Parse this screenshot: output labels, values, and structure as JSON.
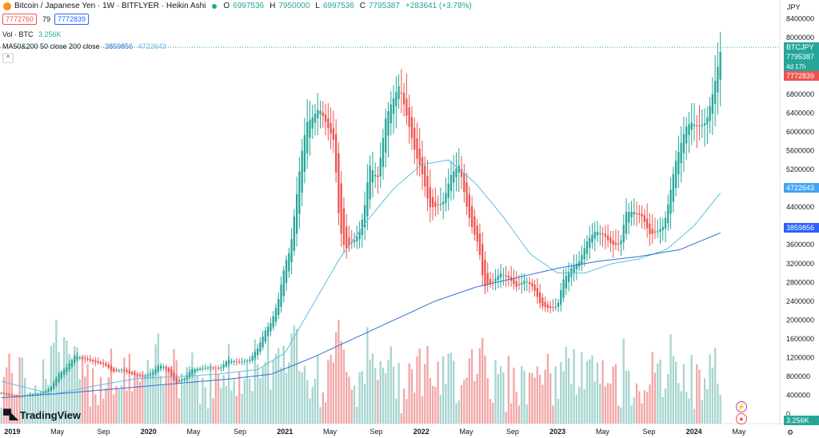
{
  "header": {
    "title": "Bitcoin / Japanese Yen · 1W · BITFLYER · Heikin Ashi",
    "o_label": "O",
    "o_value": "6997536",
    "h_label": "H",
    "h_value": "7950000",
    "l_label": "L",
    "l_value": "6997536",
    "c_label": "C",
    "c_value": "7795387",
    "change": "+283641 (+3.78%)",
    "sell_price": "7772760",
    "spread": "79",
    "buy_price": "7772839",
    "volume_label": "Vol · BTC",
    "volume_value": "3.256K",
    "ma_label": "MA50&200 50 close 200 close",
    "ma50_value": "3859856",
    "ma200_value": "4722643"
  },
  "currency": "JPY",
  "badges": {
    "symbol": "BTCJPY",
    "price": "7795387",
    "countdown": "4d 17h",
    "bid": "7772839",
    "ma_light": "4722643",
    "ma_dark": "3859856",
    "volume": "3.256K"
  },
  "brand": "TradingView",
  "colors": {
    "up": "#26a69a",
    "down": "#ef5350",
    "ma_light": "#5fbfe0",
    "ma_dark": "#2f6fd6",
    "vol_up": "#a6d5cf",
    "vol_down": "#f2a6a6",
    "badge_blue_light": "#42a5f5",
    "badge_blue_dark": "#2962ff"
  },
  "chart_data": {
    "type": "candlestick",
    "style": "Heikin Ashi",
    "interval": "1W",
    "ylim": [
      -200000,
      8800000
    ],
    "y_ticks": [
      "8400000",
      "8000000",
      "7600000",
      "7200000",
      "6800000",
      "6400000",
      "6000000",
      "5600000",
      "5200000",
      "4800000",
      "4400000",
      "4000000",
      "3600000",
      "3200000",
      "2800000",
      "2400000",
      "2000000",
      "1600000",
      "1200000",
      "800000",
      "400000",
      "0"
    ],
    "x_ticks": [
      "2019",
      "May",
      "Sep",
      "2020",
      "May",
      "Sep",
      "2021",
      "May",
      "Sep",
      "2022",
      "May",
      "Sep",
      "2023",
      "May",
      "Sep",
      "2024",
      "May"
    ],
    "x_tick_bold": [
      "2019",
      "2020",
      "2021",
      "2022",
      "2023",
      "2024"
    ],
    "x_range": [
      2018.91,
      2024.63
    ],
    "close_series": [
      [
        2018.92,
        450000
      ],
      [
        2018.98,
        400000
      ],
      [
        2019.04,
        380000
      ],
      [
        2019.1,
        400000
      ],
      [
        2019.16,
        430000
      ],
      [
        2019.22,
        450000
      ],
      [
        2019.28,
        560000
      ],
      [
        2019.34,
        850000
      ],
      [
        2019.4,
        1000000
      ],
      [
        2019.46,
        1250000
      ],
      [
        2019.5,
        1200000
      ],
      [
        2019.56,
        1150000
      ],
      [
        2019.62,
        1100000
      ],
      [
        2019.68,
        1050000
      ],
      [
        2019.74,
        900000
      ],
      [
        2019.8,
        950000
      ],
      [
        2019.88,
        850000
      ],
      [
        2019.95,
        800000
      ],
      [
        2020.02,
        850000
      ],
      [
        2020.08,
        1050000
      ],
      [
        2020.14,
        950000
      ],
      [
        2020.2,
        650000
      ],
      [
        2020.26,
        750000
      ],
      [
        2020.32,
        950000
      ],
      [
        2020.4,
        980000
      ],
      [
        2020.46,
        1000000
      ],
      [
        2020.52,
        960000
      ],
      [
        2020.58,
        1150000
      ],
      [
        2020.66,
        1100000
      ],
      [
        2020.74,
        1150000
      ],
      [
        2020.8,
        1400000
      ],
      [
        2020.86,
        1800000
      ],
      [
        2020.9,
        1950000
      ],
      [
        2020.95,
        2400000
      ],
      [
        2021.0,
        3200000
      ],
      [
        2021.04,
        3500000
      ],
      [
        2021.08,
        4500000
      ],
      [
        2021.12,
        5500000
      ],
      [
        2021.16,
        6200000
      ],
      [
        2021.2,
        6300000
      ],
      [
        2021.25,
        6500000
      ],
      [
        2021.3,
        6200000
      ],
      [
        2021.36,
        5800000
      ],
      [
        2021.4,
        4000000
      ],
      [
        2021.44,
        3500000
      ],
      [
        2021.48,
        3600000
      ],
      [
        2021.54,
        3800000
      ],
      [
        2021.58,
        4300000
      ],
      [
        2021.62,
        5300000
      ],
      [
        2021.68,
        5000000
      ],
      [
        2021.74,
        6300000
      ],
      [
        2021.78,
        6600000
      ],
      [
        2021.84,
        7000000
      ],
      [
        2021.88,
        6500000
      ],
      [
        2021.92,
        6000000
      ],
      [
        2021.96,
        5500000
      ],
      [
        2022.0,
        5200000
      ],
      [
        2022.06,
        4400000
      ],
      [
        2022.1,
        4400000
      ],
      [
        2022.16,
        4500000
      ],
      [
        2022.22,
        5100000
      ],
      [
        2022.28,
        5300000
      ],
      [
        2022.34,
        4300000
      ],
      [
        2022.38,
        3900000
      ],
      [
        2022.42,
        3600000
      ],
      [
        2022.46,
        2700000
      ],
      [
        2022.52,
        2800000
      ],
      [
        2022.58,
        3000000
      ],
      [
        2022.64,
        2900000
      ],
      [
        2022.7,
        2700000
      ],
      [
        2022.76,
        2850000
      ],
      [
        2022.82,
        2700000
      ],
      [
        2022.88,
        2300000
      ],
      [
        2022.94,
        2250000
      ],
      [
        2023.0,
        2300000
      ],
      [
        2023.04,
        2850000
      ],
      [
        2023.1,
        3100000
      ],
      [
        2023.16,
        3250000
      ],
      [
        2023.22,
        3700000
      ],
      [
        2023.28,
        3900000
      ],
      [
        2023.34,
        3800000
      ],
      [
        2023.4,
        3600000
      ],
      [
        2023.46,
        3600000
      ],
      [
        2023.5,
        4300000
      ],
      [
        2023.56,
        4300000
      ],
      [
        2023.62,
        4200000
      ],
      [
        2023.68,
        3800000
      ],
      [
        2023.74,
        3900000
      ],
      [
        2023.78,
        4000000
      ],
      [
        2023.82,
        4600000
      ],
      [
        2023.86,
        5300000
      ],
      [
        2023.9,
        5700000
      ],
      [
        2023.94,
        6100000
      ],
      [
        2023.98,
        6200000
      ],
      [
        2024.03,
        6100000
      ],
      [
        2024.09,
        6200000
      ],
      [
        2024.13,
        6700000
      ],
      [
        2024.17,
        7300000
      ],
      [
        2024.2,
        7795387
      ]
    ],
    "ma_light_series": [
      [
        2018.92,
        700000
      ],
      [
        2019.3,
        420000
      ],
      [
        2019.6,
        600000
      ],
      [
        2019.9,
        750000
      ],
      [
        2020.2,
        800000
      ],
      [
        2020.5,
        850000
      ],
      [
        2020.8,
        950000
      ],
      [
        2021.0,
        1300000
      ],
      [
        2021.2,
        2300000
      ],
      [
        2021.4,
        3300000
      ],
      [
        2021.6,
        4100000
      ],
      [
        2021.8,
        4800000
      ],
      [
        2022.0,
        5300000
      ],
      [
        2022.2,
        5400000
      ],
      [
        2022.4,
        4900000
      ],
      [
        2022.6,
        4200000
      ],
      [
        2022.8,
        3400000
      ],
      [
        2023.0,
        3000000
      ],
      [
        2023.2,
        3000000
      ],
      [
        2023.4,
        3200000
      ],
      [
        2023.6,
        3300000
      ],
      [
        2023.8,
        3500000
      ],
      [
        2024.0,
        4000000
      ],
      [
        2024.2,
        4722643
      ]
    ],
    "ma_dark_series": [
      [
        2018.92,
        350000
      ],
      [
        2019.4,
        450000
      ],
      [
        2019.8,
        550000
      ],
      [
        2020.2,
        650000
      ],
      [
        2020.6,
        750000
      ],
      [
        2020.9,
        850000
      ],
      [
        2021.2,
        1200000
      ],
      [
        2021.5,
        1600000
      ],
      [
        2021.8,
        2000000
      ],
      [
        2022.1,
        2400000
      ],
      [
        2022.4,
        2700000
      ],
      [
        2022.7,
        2900000
      ],
      [
        2023.0,
        3100000
      ],
      [
        2023.3,
        3250000
      ],
      [
        2023.6,
        3350000
      ],
      [
        2023.9,
        3500000
      ],
      [
        2024.2,
        3859856
      ]
    ],
    "volume_ylim": [
      0,
      12000
    ],
    "volume_note": "Vol · BTC, latest 3.256K"
  }
}
